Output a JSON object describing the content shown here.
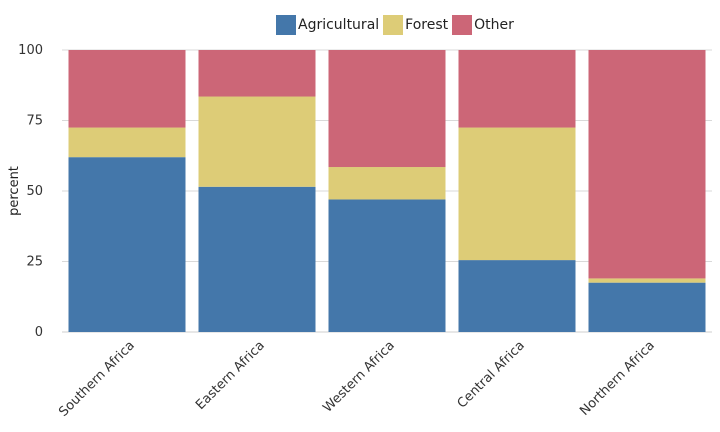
{
  "chart_data": {
    "type": "bar",
    "stacked": true,
    "categories": [
      "Southern Africa",
      "Eastern Africa",
      "Western Africa",
      "Central Africa",
      "Northern Africa"
    ],
    "series": [
      {
        "name": "Agricultural",
        "color": "#4477aa",
        "values": [
          62,
          51.5,
          47,
          25.5,
          17.5
        ]
      },
      {
        "name": "Forest",
        "color": "#ddcc77",
        "values": [
          10.5,
          32,
          11.5,
          47,
          1.5
        ]
      },
      {
        "name": "Other",
        "color": "#cc6677",
        "values": [
          27.5,
          16.5,
          41.5,
          27.5,
          81
        ]
      }
    ],
    "xlabel": "",
    "ylabel": "percent",
    "ylim": [
      0,
      100
    ],
    "yticks": [
      0,
      25,
      50,
      75,
      100
    ],
    "grid": true,
    "legend_position": "top"
  }
}
